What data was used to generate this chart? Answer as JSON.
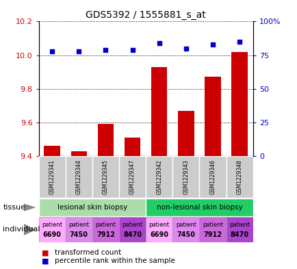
{
  "title": "GDS5392 / 1555881_s_at",
  "samples": [
    "GSM1229341",
    "GSM1229344",
    "GSM1229345",
    "GSM1229347",
    "GSM1229342",
    "GSM1229343",
    "GSM1229346",
    "GSM1229348"
  ],
  "transformed_count": [
    9.46,
    9.43,
    9.59,
    9.51,
    9.93,
    9.67,
    9.87,
    10.02
  ],
  "percentile_rank": [
    78,
    78,
    79,
    79,
    84,
    80,
    83,
    85
  ],
  "y_min": 9.4,
  "y_max": 10.2,
  "y_ticks_left": [
    9.4,
    9.6,
    9.8,
    10.0,
    10.2
  ],
  "y_ticks_right": [
    0,
    25,
    50,
    75,
    100
  ],
  "bar_color": "#cc0000",
  "dot_color": "#0000cc",
  "tissue_groups": [
    {
      "label": "lesional skin biopsy",
      "start": 0,
      "end": 4,
      "color": "#aaddaa"
    },
    {
      "label": "non-lesional skin biopsy",
      "start": 4,
      "end": 8,
      "color": "#22cc66"
    }
  ],
  "individual_colors": [
    "#ffaaff",
    "#dd88ee",
    "#cc66dd",
    "#aa44cc",
    "#ffaaff",
    "#dd88ee",
    "#cc66dd",
    "#aa44cc"
  ],
  "individual_labels": [
    [
      "patient",
      "6690"
    ],
    [
      "patient",
      "7450"
    ],
    [
      "patient",
      "7912"
    ],
    [
      "patient",
      "8470"
    ],
    [
      "patient",
      "6690"
    ],
    [
      "patient",
      "7450"
    ],
    [
      "patient",
      "7912"
    ],
    [
      "patient",
      "8470"
    ]
  ],
  "legend_red_label": "transformed count",
  "legend_blue_label": "percentile rank within the sample",
  "sample_box_color": "#cccccc",
  "bg_color": "#ffffff",
  "grid_color": "#000000",
  "left_axis_color": "#cc0000",
  "right_axis_color": "#0000cc"
}
